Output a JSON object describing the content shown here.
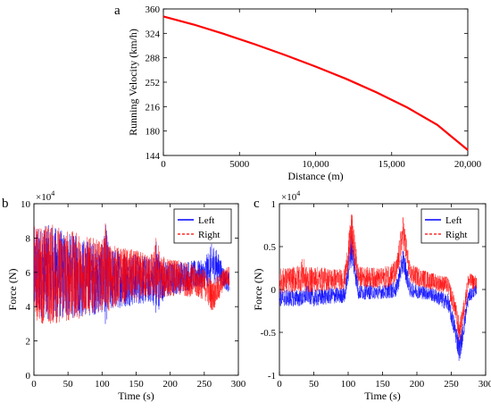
{
  "colors": {
    "left": "#0000ff",
    "right": "#ff0000",
    "curve": "#ff0000",
    "axis": "#000000"
  },
  "chart_data": [
    {
      "panel_letter": "a",
      "type": "line",
      "xlabel": "Distance (m)",
      "ylabel": "Running Velocity (km/h)",
      "xlim": [
        0,
        20000
      ],
      "ylim": [
        144,
        360
      ],
      "xticks": [
        0,
        5000,
        10000,
        15000,
        20000
      ],
      "xtick_labels": [
        "0",
        "5000",
        "10,000",
        "15,000",
        "20,000"
      ],
      "yticks": [
        144,
        180,
        216,
        252,
        288,
        324,
        360
      ],
      "ytick_labels": [
        "144",
        "180",
        "216",
        "252",
        "288",
        "324",
        "360"
      ],
      "grid": false,
      "series": [
        {
          "x": [
            0,
            2000,
            4000,
            6000,
            8000,
            10000,
            12000,
            14000,
            16000,
            18000,
            20000
          ],
          "y": [
            349,
            337,
            323,
            308,
            292,
            275,
            257,
            237,
            215,
            189,
            152
          ]
        }
      ]
    },
    {
      "panel_letter": "b",
      "type": "line",
      "xlabel": "Time (s)",
      "ylabel": "Force (N)",
      "y_multiplier_label": "×10",
      "y_multiplier_exp": "4",
      "xlim": [
        0,
        300
      ],
      "ylim": [
        0,
        10
      ],
      "xticks": [
        0,
        50,
        100,
        150,
        200,
        250,
        300
      ],
      "xtick_labels": [
        "0",
        "50",
        "100",
        "150",
        "200",
        "250",
        "300"
      ],
      "yticks": [
        0,
        2,
        4,
        6,
        8,
        10
      ],
      "ytick_labels": [
        "0",
        "2",
        "4",
        "6",
        "8",
        "10"
      ],
      "grid": false,
      "legend": {
        "position": "top-right",
        "entries": [
          "Left",
          "Right"
        ]
      },
      "series": [
        {
          "name": "Left",
          "x": [
            0,
            25,
            50,
            75,
            100,
            105,
            110,
            125,
            150,
            175,
            180,
            185,
            200,
            225,
            250,
            262,
            270,
            280,
            287
          ],
          "y_center": [
            6.0,
            6.0,
            5.8,
            5.7,
            5.6,
            5.9,
            5.6,
            5.6,
            5.6,
            5.5,
            5.6,
            5.5,
            5.6,
            5.8,
            5.9,
            6.5,
            6.3,
            5.6,
            5.4
          ],
          "y_amp": [
            2.6,
            2.8,
            2.5,
            2.3,
            2.0,
            3.0,
            2.0,
            1.7,
            1.5,
            1.3,
            2.6,
            1.3,
            1.0,
            0.9,
            0.8,
            1.3,
            0.9,
            0.6,
            0.6
          ]
        },
        {
          "name": "Right",
          "x": [
            0,
            25,
            50,
            75,
            100,
            105,
            110,
            125,
            150,
            175,
            180,
            185,
            200,
            225,
            250,
            262,
            270,
            280,
            287
          ],
          "y_center": [
            5.9,
            5.9,
            5.8,
            5.8,
            5.8,
            6.3,
            5.7,
            5.8,
            5.8,
            5.8,
            6.3,
            5.7,
            5.7,
            5.6,
            5.3,
            4.6,
            5.0,
            5.7,
            5.8
          ],
          "y_amp": [
            2.8,
            3.0,
            2.7,
            2.4,
            2.0,
            2.6,
            2.0,
            1.7,
            1.5,
            1.3,
            2.1,
            1.3,
            1.1,
            1.0,
            0.9,
            0.9,
            0.8,
            0.6,
            0.6
          ]
        }
      ]
    },
    {
      "panel_letter": "c",
      "type": "line",
      "xlabel": "Time (s)",
      "ylabel": "Force (N)",
      "y_multiplier_label": "×10",
      "y_multiplier_exp": "4",
      "xlim": [
        0,
        300
      ],
      "ylim": [
        -1,
        1
      ],
      "xticks": [
        0,
        50,
        100,
        150,
        200,
        250,
        300
      ],
      "xtick_labels": [
        "0",
        "50",
        "100",
        "150",
        "200",
        "250",
        "300"
      ],
      "yticks": [
        -1,
        -0.5,
        0,
        0.5,
        1
      ],
      "ytick_labels": [
        "-1",
        "-0.5",
        "0",
        "0.5",
        "1"
      ],
      "grid": false,
      "legend": {
        "position": "top-right",
        "entries": [
          "Left",
          "Right"
        ]
      },
      "series": [
        {
          "name": "Left",
          "x": [
            0,
            25,
            35,
            40,
            50,
            75,
            95,
            105,
            115,
            150,
            170,
            180,
            190,
            220,
            245,
            255,
            262,
            268,
            275,
            287
          ],
          "y_center": [
            -0.1,
            -0.1,
            -0.1,
            -0.05,
            -0.1,
            -0.07,
            -0.07,
            0.5,
            -0.03,
            -0.03,
            0.0,
            0.35,
            0.0,
            -0.05,
            -0.15,
            -0.45,
            -0.72,
            -0.45,
            -0.08,
            0.0
          ],
          "y_amp": [
            0.1,
            0.1,
            0.1,
            0.1,
            0.1,
            0.1,
            0.09,
            0.2,
            0.09,
            0.08,
            0.1,
            0.15,
            0.09,
            0.08,
            0.1,
            0.12,
            0.15,
            0.12,
            0.08,
            0.06
          ]
        },
        {
          "name": "Right",
          "x": [
            0,
            25,
            35,
            40,
            50,
            75,
            95,
            105,
            115,
            150,
            170,
            180,
            190,
            220,
            245,
            255,
            262,
            268,
            275,
            287
          ],
          "y_center": [
            0.1,
            0.12,
            0.18,
            0.1,
            0.12,
            0.12,
            0.12,
            0.68,
            0.15,
            0.13,
            0.2,
            0.68,
            0.18,
            0.1,
            0.05,
            -0.2,
            -0.5,
            -0.25,
            0.1,
            0.08
          ],
          "y_amp": [
            0.15,
            0.15,
            0.2,
            0.15,
            0.15,
            0.13,
            0.12,
            0.25,
            0.12,
            0.12,
            0.15,
            0.2,
            0.12,
            0.1,
            0.1,
            0.12,
            0.13,
            0.12,
            0.1,
            0.08
          ]
        }
      ]
    }
  ]
}
